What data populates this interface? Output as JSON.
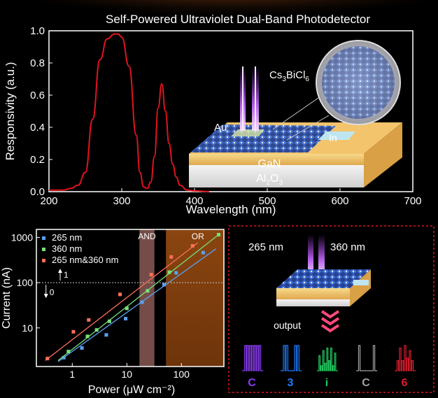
{
  "title": "Self-Powered Ultraviolet Dual-Band Photodetector",
  "device": {
    "material_prefix": "Cs",
    "material_sub1": "3",
    "material_mid": "BiCl",
    "material_sub2": "6",
    "electrode_au": "Au",
    "electrode_in": "In",
    "layer_gan": "GaN",
    "substrate_prefix": "Al",
    "substrate_sub1": "2",
    "substrate_mid": "O",
    "substrate_sub2": "3"
  },
  "logic": {
    "label_265": "265 nm",
    "label_360": "360 nm",
    "output_label": "output",
    "letters": [
      "C",
      "3",
      "i",
      "C",
      "6"
    ],
    "letter_colors": [
      "#8a3cf0",
      "#1e7cff",
      "#22c55e",
      "#a3a3a3",
      "#e11d2e"
    ]
  },
  "chart_data": [
    {
      "type": "line",
      "xlabel": "Wavelength (nm)",
      "ylabel": "Responsivity (a.u.)",
      "xlim": [
        200,
        700
      ],
      "ylim": [
        0,
        1.0
      ],
      "x_ticks": [
        "200",
        "300",
        "400",
        "500",
        "600",
        "700"
      ],
      "y_ticks": [
        "0.0",
        "0.2",
        "0.4",
        "0.6",
        "0.8",
        "1.0"
      ],
      "color": "#e0141e",
      "x": [
        200,
        210,
        220,
        230,
        240,
        250,
        260,
        270,
        280,
        290,
        295,
        300,
        310,
        320,
        325,
        330,
        335,
        340,
        345,
        350,
        355,
        360,
        365,
        370,
        375,
        380,
        390,
        400,
        420
      ],
      "y": [
        0.01,
        0.01,
        0.01,
        0.02,
        0.04,
        0.12,
        0.45,
        0.82,
        0.95,
        0.98,
        0.98,
        0.96,
        0.78,
        0.35,
        0.12,
        0.03,
        0.02,
        0.06,
        0.22,
        0.52,
        0.67,
        0.5,
        0.3,
        0.17,
        0.09,
        0.04,
        0.01,
        0.005,
        0.0
      ]
    },
    {
      "type": "scatter",
      "xlabel": "Power (μW cm⁻²)",
      "ylabel": "Current (nA)",
      "xscale": "log",
      "yscale": "log",
      "xlim": [
        0.22,
        600
      ],
      "ylim": [
        1.4,
        1500
      ],
      "x_ticks": [
        "1",
        "10",
        "100"
      ],
      "y_ticks": [
        "10",
        "100",
        "1000"
      ],
      "region_labels": [
        "AND",
        "OR"
      ],
      "threshold_labels": [
        "1",
        "0"
      ],
      "threshold": 100,
      "series": [
        {
          "name": "265 nm",
          "color": "#5aa0f0",
          "x": [
            0.7,
            1.5,
            4.2,
            9.5,
            19,
            48,
            80,
            250
          ],
          "y": [
            2.2,
            3.6,
            7,
            16,
            37,
            90,
            165,
            460
          ],
          "fit": [
            [
              0.55,
              1.8
            ],
            [
              430,
              560
            ]
          ]
        },
        {
          "name": "360 nm",
          "color": "#78e07a",
          "x": [
            0.85,
            1.9,
            2.8,
            4.8,
            10,
            24,
            60,
            480
          ],
          "y": [
            3.0,
            6.5,
            9,
            14,
            27,
            66,
            170,
            1150
          ],
          "fit": [
            [
              0.55,
              1.9
            ],
            [
              480,
              1150
            ]
          ]
        },
        {
          "name": "265 nm&360 nm",
          "color": "#ff6e5a",
          "x": [
            0.35,
            1.05,
            2.0,
            7.5,
            28,
            65,
            160
          ],
          "y": [
            2.1,
            8.2,
            15,
            55,
            150,
            370,
            650
          ],
          "fit": [
            [
              0.32,
              1.9
            ],
            [
              200,
              760
            ]
          ]
        }
      ]
    }
  ]
}
